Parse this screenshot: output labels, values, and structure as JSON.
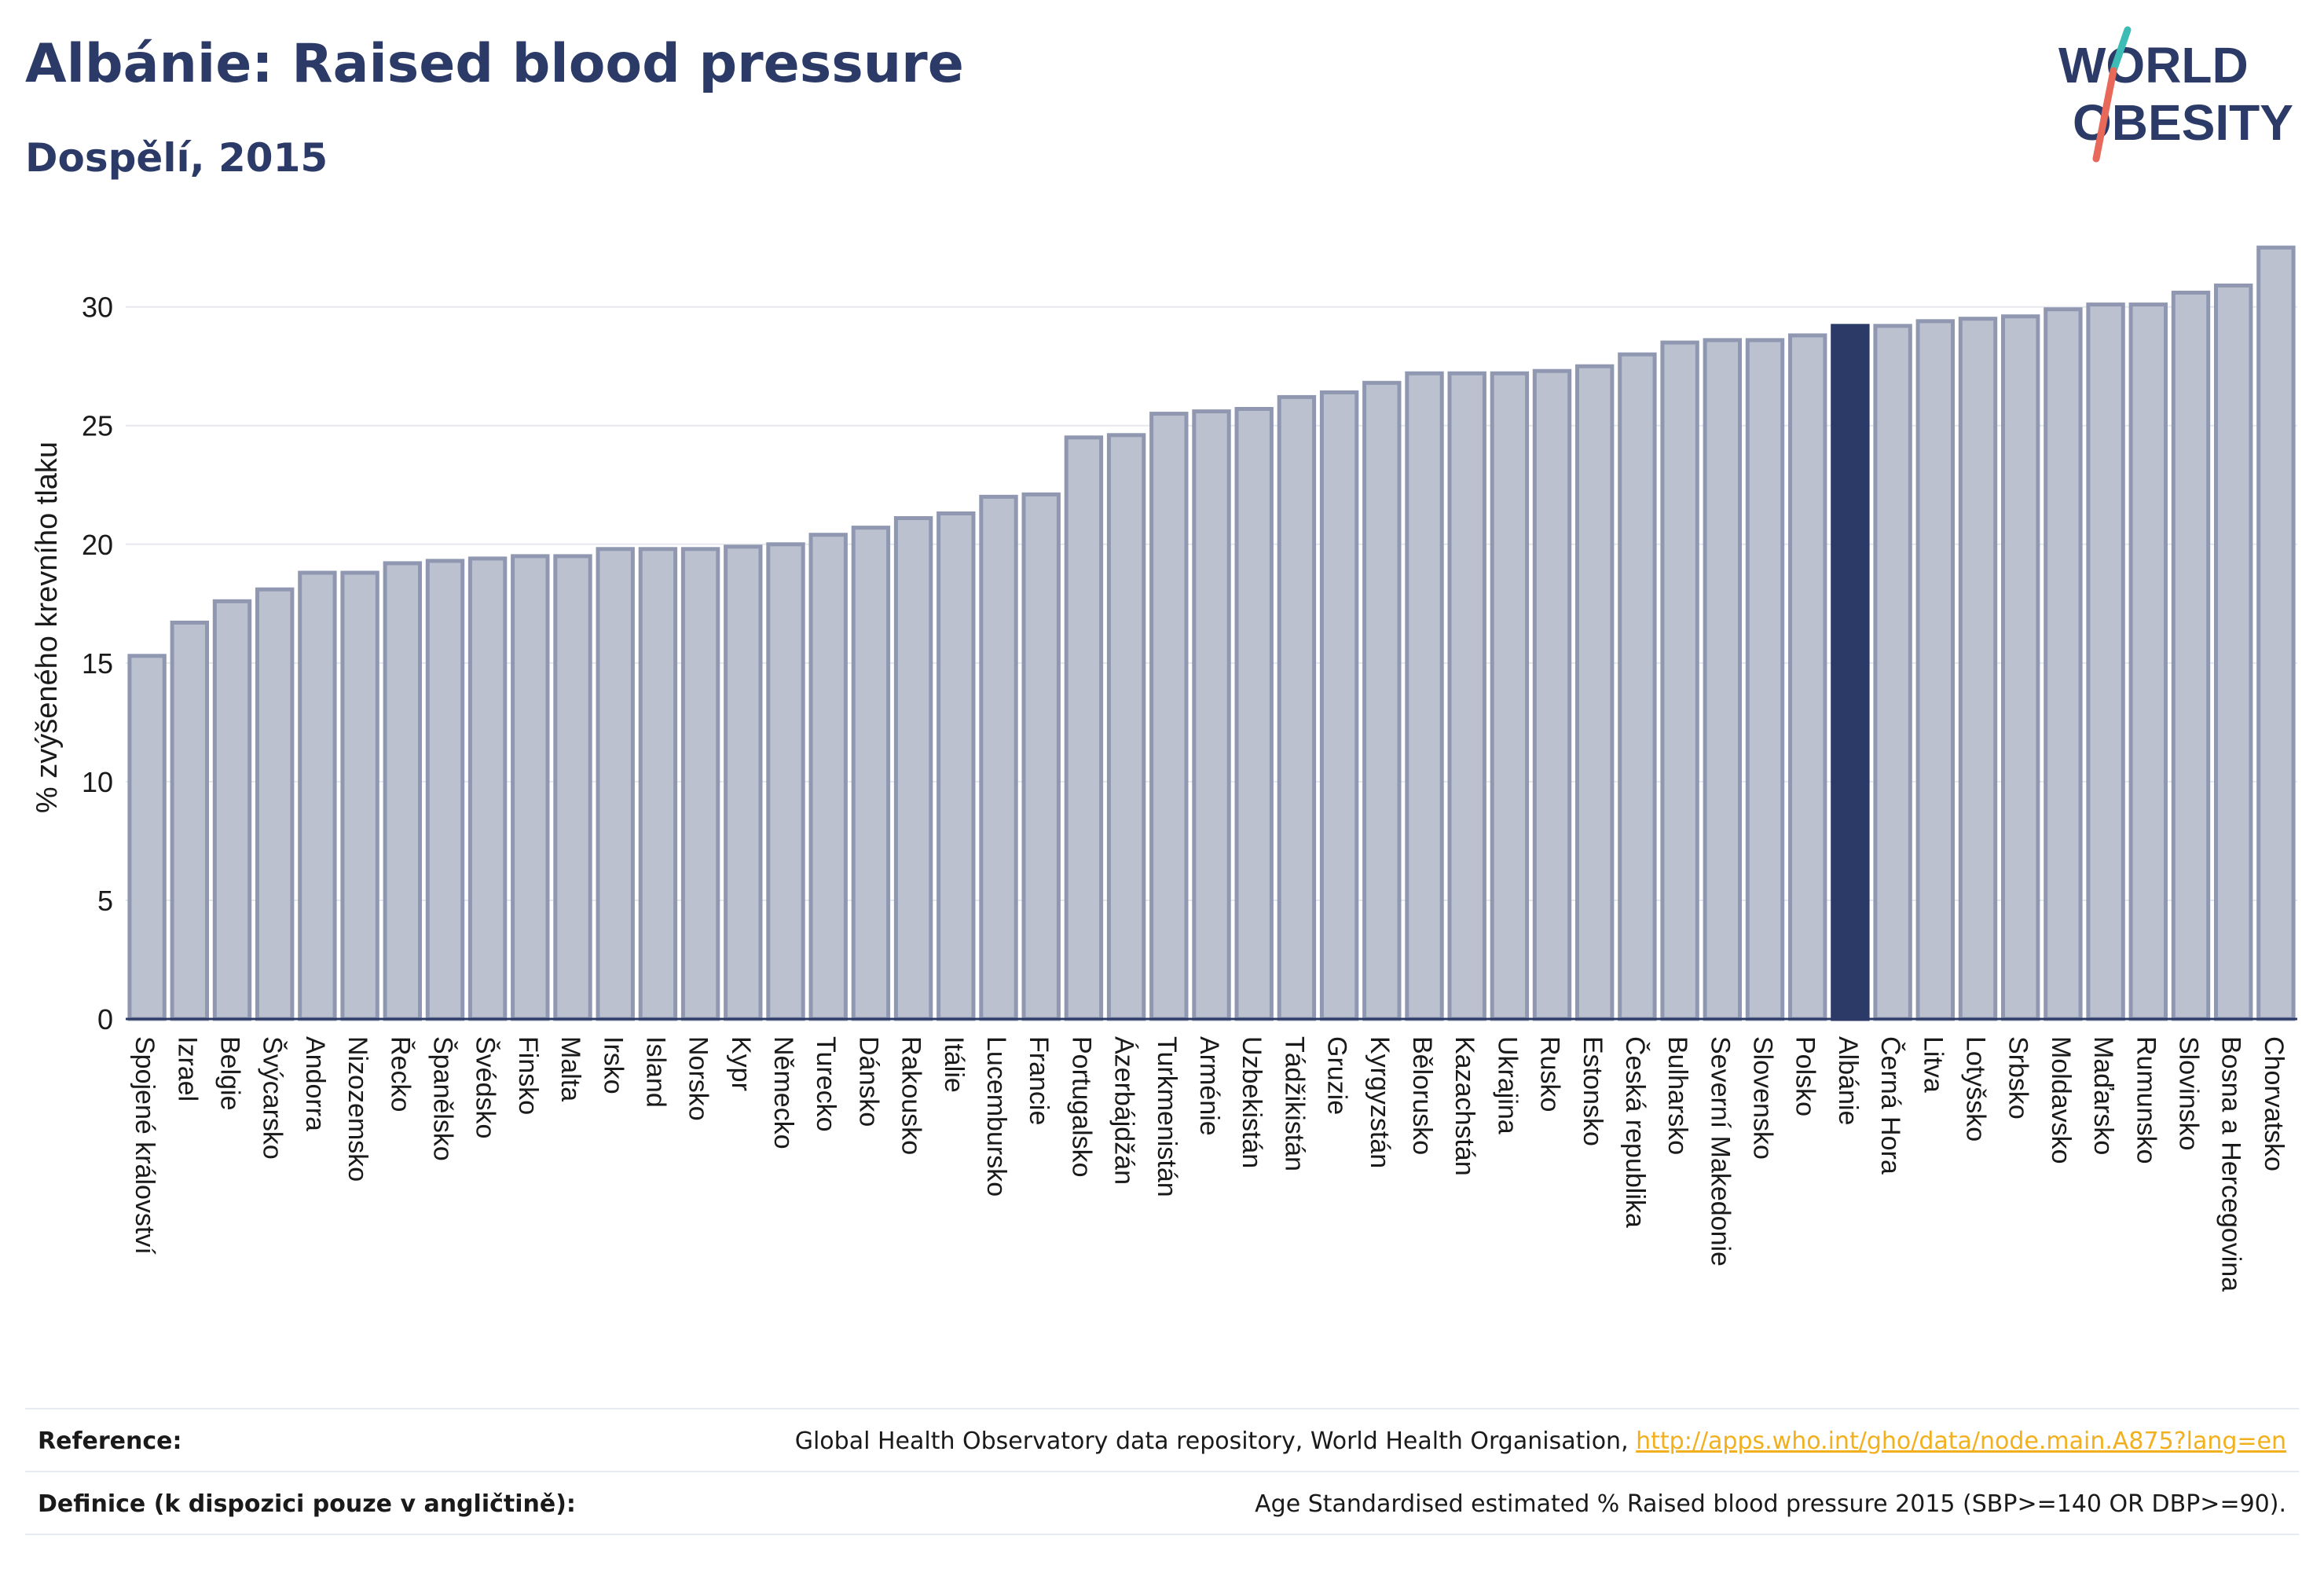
{
  "header": {
    "title": "Albánie: Raised blood pressure",
    "subtitle": "Dospělí, 2015"
  },
  "logo": {
    "line1": "WORLD",
    "line2": "OBESITY"
  },
  "colors": {
    "primary": "#2b3a67",
    "bar_fill": "#bcc1d0",
    "bar_stroke": "#9098b1",
    "highlight": "#2b3a67",
    "slash_teal": "#3cbcb4",
    "slash_coral": "#e8685a",
    "link": "#f2b01e"
  },
  "chart_data": {
    "type": "bar",
    "title": "Albánie: Raised blood pressure",
    "subtitle": "Dospělí, 2015",
    "ylabel": "% zvýšeného krevního tlaku",
    "xlabel": "",
    "ylim": [
      0,
      33
    ],
    "yticks": [
      0,
      5,
      10,
      15,
      20,
      25,
      30
    ],
    "grid": true,
    "highlight": "Albánie",
    "categories": [
      "Spojené království",
      "Izrael",
      "Belgie",
      "Švýcarsko",
      "Andorra",
      "Nizozemsko",
      "Řecko",
      "Španělsko",
      "Švédsko",
      "Finsko",
      "Malta",
      "Irsko",
      "Island",
      "Norsko",
      "Kypr",
      "Německo",
      "Turecko",
      "Dánsko",
      "Rakousko",
      "Itálie",
      "Lucembursko",
      "Francie",
      "Portugalsko",
      "Ázerbájdžán",
      "Turkmenistán",
      "Arménie",
      "Uzbekistán",
      "Tádžikistán",
      "Gruzie",
      "Kyrgyzstán",
      "Bělorusko",
      "Kazachstán",
      "Ukrajina",
      "Rusko",
      "Estonsko",
      "Česká republika",
      "Bulharsko",
      "Severní Makedonie",
      "Slovensko",
      "Polsko",
      "Albánie",
      "Černá Hora",
      "Litva",
      "Lotyšsko",
      "Srbsko",
      "Moldavsko",
      "Maďarsko",
      "Rumunsko",
      "Slovinsko",
      "Bosna a Hercegovina",
      "Chorvatsko"
    ],
    "values": [
      15.3,
      16.7,
      17.6,
      18.1,
      18.8,
      18.8,
      19.2,
      19.3,
      19.4,
      19.5,
      19.5,
      19.8,
      19.8,
      19.8,
      19.9,
      20.0,
      20.4,
      20.7,
      21.1,
      21.3,
      22.0,
      22.1,
      24.5,
      24.6,
      25.5,
      25.6,
      25.7,
      26.2,
      26.4,
      26.8,
      27.2,
      27.2,
      27.2,
      27.3,
      27.5,
      28.0,
      28.5,
      28.6,
      28.6,
      28.8,
      29.2,
      29.2,
      29.4,
      29.5,
      29.6,
      29.9,
      30.1,
      30.1,
      30.6,
      30.9,
      32.5
    ]
  },
  "footer": {
    "reference_label": "Reference:",
    "reference_text": "Global Health Observatory data repository, World Health Organisation, ",
    "reference_link": "http://apps.who.int/gho/data/node.main.A875?lang=en",
    "definition_label": "Definice (k dispozici pouze v angličtině):",
    "definition_text": "Age Standardised estimated % Raised blood pressure 2015 (SBP>=140 OR DBP>=90)."
  }
}
